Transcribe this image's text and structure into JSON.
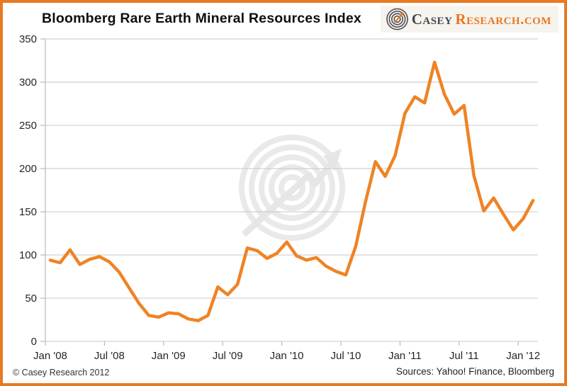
{
  "title": "Bloomberg Rare Earth Mineral Resources Index",
  "logo": {
    "brand_primary": "Casey",
    "brand_secondary": "Research.com",
    "icon": "spiral-target-arrow-icon"
  },
  "footer": {
    "copyright": "© Casey Research 2012",
    "sources": "Sources: Yahoo! Finance, Bloomberg"
  },
  "colors": {
    "line": "#EF8325",
    "border": "#E87A22",
    "grid": "#C7C7C7",
    "axis": "#ABABAB",
    "text": "#262626",
    "brand_orange": "#E87722",
    "brand_dark": "#474550",
    "watermark": "#E8E8E8"
  },
  "chart_data": {
    "type": "line",
    "title": "Bloomberg Rare Earth Mineral Resources Index",
    "x": [
      "Jan '08",
      "Feb '08",
      "Mar '08",
      "Apr '08",
      "May '08",
      "Jun '08",
      "Jul '08",
      "Aug '08",
      "Sep '08",
      "Oct '08",
      "Nov '08",
      "Dec '08",
      "Jan '09",
      "Feb '09",
      "Mar '09",
      "Apr '09",
      "May '09",
      "Jun '09",
      "Jul '09",
      "Aug '09",
      "Sep '09",
      "Oct '09",
      "Nov '09",
      "Dec '09",
      "Jan '10",
      "Feb '10",
      "Mar '10",
      "Apr '10",
      "May '10",
      "Jun '10",
      "Jul '10",
      "Aug '10",
      "Sep '10",
      "Oct '10",
      "Nov '10",
      "Dec '10",
      "Jan '11",
      "Feb '11",
      "Mar '11",
      "Apr '11",
      "May '11",
      "Jun '11",
      "Jul '11",
      "Aug '11",
      "Sep '11",
      "Oct '11",
      "Nov '11",
      "Dec '11",
      "Jan '12",
      "Feb '12"
    ],
    "values": [
      94,
      91,
      106,
      89,
      95,
      98,
      92,
      80,
      62,
      44,
      30,
      28,
      33,
      32,
      26,
      24,
      30,
      63,
      54,
      66,
      108,
      105,
      96,
      102,
      115,
      99,
      94,
      97,
      87,
      81,
      77,
      110,
      162,
      208,
      191,
      215,
      264,
      283,
      276,
      323,
      286,
      263,
      273,
      192,
      151,
      166,
      147,
      129,
      142,
      163
    ],
    "x_tick_labels": [
      "Jan '08",
      "Jul '08",
      "Jan '09",
      "Jul '09",
      "Jan '10",
      "Jul '10",
      "Jan '11",
      "Jul '11",
      "Jan '12"
    ],
    "x_tick_interval_months": 6,
    "y_tick_labels": [
      "0",
      "50",
      "100",
      "150",
      "200",
      "250",
      "300",
      "350"
    ],
    "ylim": [
      0,
      350
    ],
    "ytick_step": 50,
    "grid": true,
    "legend": "none",
    "line_color": "#EF8325"
  }
}
